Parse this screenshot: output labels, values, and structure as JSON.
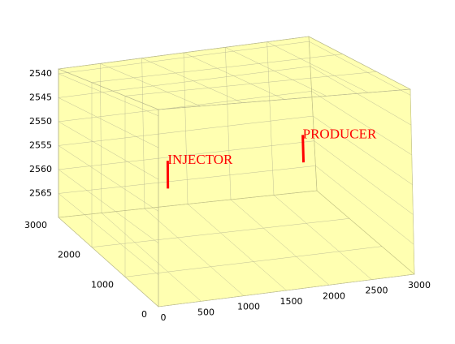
{
  "chart_data": {
    "type": "grid3d",
    "xlim": [
      0,
      3000
    ],
    "xticks": [
      0,
      500,
      1000,
      1500,
      2000,
      2500,
      3000
    ],
    "ylim": [
      0,
      3000
    ],
    "yticks": [
      0,
      1000,
      2000,
      3000
    ],
    "zlim": [
      2539,
      2570
    ],
    "zticks": [
      2540,
      2545,
      2550,
      2555,
      2560,
      2565
    ],
    "zdir": "reverse",
    "grid_color": "#ffff66",
    "wells": [
      {
        "name": "INJECTOR",
        "x": 700,
        "y": 1500,
        "z": [
          2553,
          2558
        ],
        "color": "#ff0000"
      },
      {
        "name": "PRODUCER",
        "x": 2300,
        "y": 1500,
        "z": [
          2551,
          2556
        ],
        "color": "#ff0000"
      }
    ]
  }
}
